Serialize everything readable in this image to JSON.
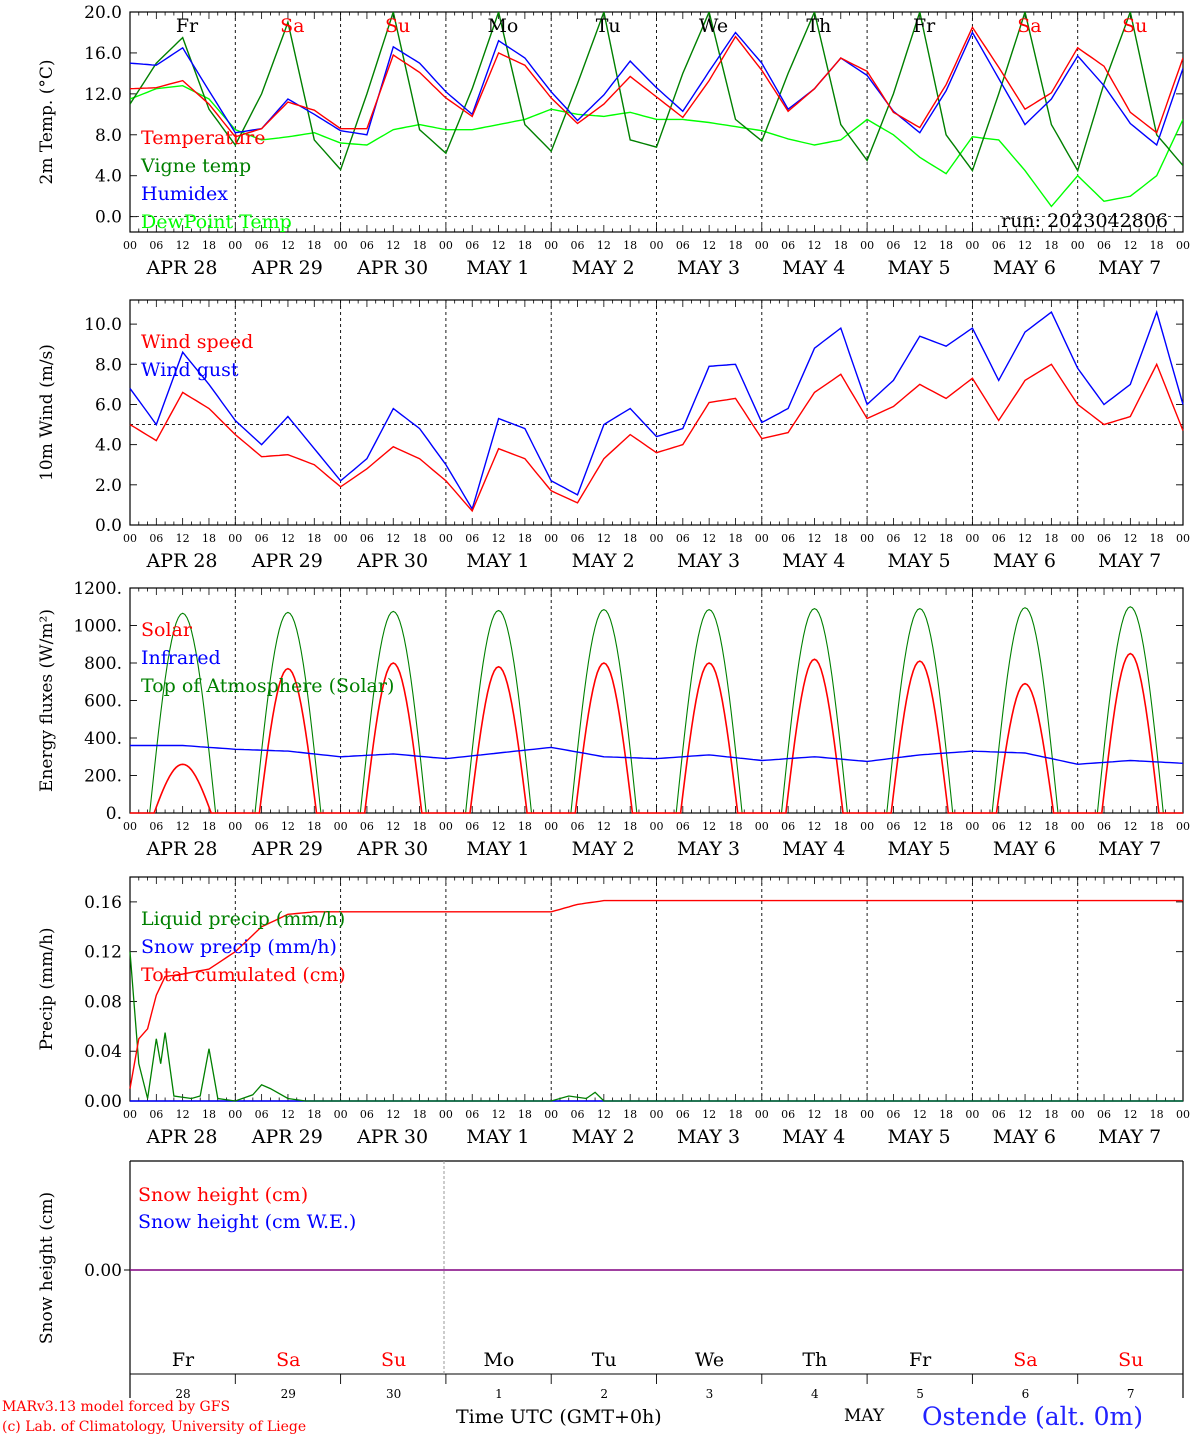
{
  "chart_data": [
    {
      "type": "line",
      "ylabel": "2m Temp. (°C)",
      "ylim": [
        -1.5,
        20
      ],
      "yticks": [
        "0.0",
        "4.0",
        "8.0",
        "12.0",
        "16.0",
        "20.0"
      ],
      "reference_line": 0,
      "run_label": "run: 2023042806",
      "weekday_labels": [
        "Fr",
        "Sa",
        "Su",
        "Mo",
        "Tu",
        "We",
        "Th",
        "Fr",
        "Sa",
        "Su"
      ],
      "legend": [
        "Temperature",
        "Vigne temp",
        "Humidex",
        "DewPoint Temp"
      ],
      "x_hours_from": "APR 28 00 UTC",
      "series": [
        {
          "name": "Temperature",
          "color": "#ff0000",
          "x": [
            0,
            6,
            12,
            18,
            24,
            30,
            36,
            42,
            48,
            54,
            60,
            66,
            72,
            78,
            84,
            90,
            96,
            102,
            108,
            114,
            120,
            126,
            132,
            138,
            144,
            150,
            156,
            162,
            168,
            174,
            180,
            186,
            192,
            198,
            204,
            210,
            216,
            222,
            228,
            234,
            240
          ],
          "values": [
            12.5,
            12.6,
            13.3,
            11.0,
            7.8,
            8.6,
            11.2,
            10.4,
            8.6,
            8.6,
            15.8,
            14.1,
            11.6,
            9.8,
            16.0,
            14.8,
            11.6,
            9.1,
            11.0,
            13.7,
            11.7,
            9.7,
            13.3,
            17.6,
            14.3,
            10.3,
            12.5,
            15.5,
            14.2,
            10.2,
            8.7,
            12.9,
            18.5,
            14.6,
            10.5,
            12.1,
            16.5,
            14.7,
            10.2,
            8.2,
            15.5
          ]
        },
        {
          "name": "Vigne temp",
          "color": "#008000",
          "x": [
            0,
            6,
            12,
            18,
            24,
            30,
            36,
            42,
            48,
            54,
            60,
            66,
            72,
            78,
            84,
            90,
            96,
            102,
            108,
            114,
            120,
            126,
            132,
            138,
            144,
            150,
            156,
            162,
            168,
            174,
            180,
            186,
            192,
            198,
            204,
            210,
            216,
            222,
            228,
            234,
            240
          ],
          "values": [
            11.0,
            15.0,
            17.5,
            10.5,
            7.0,
            12.0,
            19.0,
            7.5,
            4.6,
            12.0,
            20.0,
            8.5,
            6.2,
            12.5,
            20.0,
            9.0,
            6.4,
            13.0,
            20.0,
            7.5,
            6.8,
            14.0,
            20.0,
            9.5,
            7.4,
            14.0,
            20.0,
            9.0,
            5.5,
            12.0,
            20.0,
            8.0,
            4.5,
            12.0,
            20.0,
            9.0,
            4.5,
            13.0,
            20.0,
            8.0,
            5.0
          ]
        },
        {
          "name": "Humidex",
          "color": "#0000ff",
          "x": [
            0,
            6,
            12,
            18,
            24,
            30,
            36,
            42,
            48,
            54,
            60,
            66,
            72,
            78,
            84,
            90,
            96,
            102,
            108,
            114,
            120,
            126,
            132,
            138,
            144,
            150,
            156,
            162,
            168,
            174,
            180,
            186,
            192,
            198,
            204,
            210,
            216,
            222,
            228,
            234,
            240
          ],
          "values": [
            15.0,
            14.8,
            16.5,
            12.3,
            8.2,
            8.6,
            11.5,
            10.0,
            8.4,
            8.0,
            16.6,
            15.0,
            12.2,
            10.0,
            17.2,
            15.5,
            12.2,
            9.4,
            11.9,
            15.2,
            12.6,
            10.3,
            14.2,
            18.0,
            15.0,
            10.5,
            12.5,
            15.5,
            13.8,
            10.3,
            8.2,
            12.3,
            18.0,
            13.5,
            9.0,
            11.5,
            15.7,
            12.8,
            9.1,
            7.0,
            14.5
          ]
        },
        {
          "name": "DewPoint Temp",
          "color": "#00ff00",
          "x": [
            0,
            6,
            12,
            18,
            24,
            30,
            36,
            42,
            48,
            54,
            60,
            66,
            72,
            78,
            84,
            90,
            96,
            102,
            108,
            114,
            120,
            126,
            132,
            138,
            144,
            150,
            156,
            162,
            168,
            174,
            180,
            186,
            192,
            198,
            204,
            210,
            216,
            222,
            228,
            234,
            240
          ],
          "values": [
            11.5,
            12.5,
            12.8,
            11.5,
            8.5,
            7.5,
            7.8,
            8.2,
            7.2,
            7.0,
            8.5,
            9.0,
            8.5,
            8.5,
            9.0,
            9.5,
            10.5,
            10.0,
            9.8,
            10.2,
            9.5,
            9.5,
            9.2,
            8.8,
            8.4,
            7.6,
            7.0,
            7.5,
            9.5,
            8.0,
            5.8,
            4.2,
            7.8,
            7.5,
            4.5,
            1.0,
            4.0,
            1.5,
            2.0,
            4.0,
            9.5
          ]
        }
      ]
    },
    {
      "type": "line",
      "ylabel": "10m Wind (m/s)",
      "ylim": [
        0,
        11.2
      ],
      "yticks": [
        "0.0",
        "2.0",
        "4.0",
        "6.0",
        "8.0",
        "10.0"
      ],
      "reference_line": 5,
      "legend": [
        "Wind speed",
        "Wind gust"
      ],
      "series": [
        {
          "name": "Wind speed",
          "color": "#ff0000",
          "x": [
            0,
            6,
            12,
            18,
            24,
            30,
            36,
            42,
            48,
            54,
            60,
            66,
            72,
            78,
            84,
            90,
            96,
            102,
            108,
            114,
            120,
            126,
            132,
            138,
            144,
            150,
            156,
            162,
            168,
            174,
            180,
            186,
            192,
            198,
            204,
            210,
            216,
            222,
            228,
            234,
            240
          ],
          "values": [
            5.0,
            4.2,
            6.6,
            5.8,
            4.5,
            3.4,
            3.5,
            3.0,
            1.9,
            2.8,
            3.9,
            3.3,
            2.2,
            0.7,
            3.8,
            3.3,
            1.7,
            1.1,
            3.3,
            4.5,
            3.6,
            4.0,
            6.1,
            6.3,
            4.3,
            4.6,
            6.6,
            7.5,
            5.3,
            5.9,
            7.0,
            6.3,
            7.3,
            5.2,
            7.2,
            8.0,
            6.0,
            5.0,
            5.4,
            8.0,
            4.7
          ]
        },
        {
          "name": "Wind gust",
          "color": "#0000ff",
          "x": [
            0,
            6,
            12,
            18,
            24,
            30,
            36,
            42,
            48,
            54,
            60,
            66,
            72,
            78,
            84,
            90,
            96,
            102,
            108,
            114,
            120,
            126,
            132,
            138,
            144,
            150,
            156,
            162,
            168,
            174,
            180,
            186,
            192,
            198,
            204,
            210,
            216,
            222,
            228,
            234,
            240
          ],
          "values": [
            6.8,
            5.0,
            8.6,
            7.0,
            5.2,
            4.0,
            5.4,
            3.8,
            2.2,
            3.3,
            5.8,
            4.8,
            3.0,
            0.8,
            5.3,
            4.8,
            2.2,
            1.5,
            5.0,
            5.8,
            4.4,
            4.8,
            7.9,
            8.0,
            5.1,
            5.8,
            8.8,
            9.8,
            6.0,
            7.2,
            9.4,
            8.9,
            9.8,
            7.2,
            9.6,
            10.6,
            7.8,
            6.0,
            7.0,
            10.6,
            6.0
          ]
        }
      ]
    },
    {
      "type": "line",
      "ylabel": "Energy fluxes (W/m²)",
      "ylim": [
        0,
        1200
      ],
      "yticks": [
        "0.",
        "200.",
        "400.",
        "600.",
        "800.",
        "1000.",
        "1200."
      ],
      "legend": [
        "Solar",
        "Infrared",
        "Top of Atmosphere (Solar)"
      ],
      "series": [
        {
          "name": "Solar",
          "color": "#ff0000",
          "daily_peak": [
            260,
            770,
            800,
            780,
            800,
            800,
            820,
            810,
            690,
            850
          ]
        },
        {
          "name": "Infrared",
          "color": "#0000ff",
          "x": [
            0,
            12,
            24,
            36,
            48,
            60,
            72,
            84,
            96,
            108,
            120,
            132,
            144,
            156,
            168,
            180,
            192,
            204,
            216,
            228,
            240
          ],
          "values": [
            360,
            360,
            340,
            330,
            300,
            315,
            290,
            320,
            350,
            300,
            290,
            310,
            280,
            300,
            275,
            310,
            330,
            320,
            260,
            280,
            265
          ]
        },
        {
          "name": "Top of Atmosphere (Solar)",
          "color": "#008000",
          "daily_peak": [
            1065,
            1070,
            1075,
            1080,
            1085,
            1085,
            1090,
            1090,
            1095,
            1100
          ]
        }
      ]
    },
    {
      "type": "line",
      "ylabel": "Precip (mm/h)",
      "ylim": [
        0,
        0.18
      ],
      "yticks": [
        "0.00",
        "0.04",
        "0.08",
        "0.12",
        "0.16"
      ],
      "legend": [
        "Liquid precip (mm/h)",
        "Snow precip (mm/h)",
        "Total cumulated (cm)"
      ],
      "series": [
        {
          "name": "Liquid precip (mm/h)",
          "color": "#008000",
          "x": [
            0,
            2,
            4,
            6,
            7,
            8,
            10,
            14,
            16,
            18,
            20,
            24,
            28,
            30,
            32,
            36,
            40,
            96,
            100,
            104,
            106,
            108,
            240
          ],
          "values": [
            0.12,
            0.03,
            0.002,
            0.05,
            0.03,
            0.055,
            0.004,
            0.002,
            0.004,
            0.042,
            0.002,
            0.0,
            0.005,
            0.013,
            0.01,
            0.002,
            0.0,
            0.0,
            0.004,
            0.002,
            0.007,
            0.0,
            0.0
          ]
        },
        {
          "name": "Snow precip (mm/h)",
          "color": "#0000ff",
          "x": [
            0,
            240
          ],
          "values": [
            0,
            0
          ]
        },
        {
          "name": "Total cumulated (cm)",
          "color": "#ff0000",
          "x": [
            0,
            2,
            4,
            6,
            8,
            12,
            18,
            24,
            30,
            36,
            42,
            48,
            60,
            72,
            84,
            96,
            102,
            108,
            114,
            120,
            180,
            240
          ],
          "values": [
            0.01,
            0.05,
            0.058,
            0.085,
            0.1,
            0.102,
            0.106,
            0.12,
            0.14,
            0.15,
            0.152,
            0.152,
            0.152,
            0.152,
            0.152,
            0.152,
            0.158,
            0.161,
            0.161,
            0.161,
            0.161,
            0.161
          ]
        }
      ]
    },
    {
      "type": "line",
      "ylabel": "Snow height (cm)",
      "yticks": [
        "0.00"
      ],
      "legend": [
        "Snow height (cm)",
        "Snow height (cm W.E.)"
      ],
      "series": [
        {
          "name": "Snow height (cm)",
          "color": "#ff0000",
          "values": [
            0,
            0
          ]
        },
        {
          "name": "Snow height (cm W.E.)",
          "color": "#0000ff",
          "values": [
            0,
            0
          ]
        }
      ],
      "weekday_labels": [
        "Fr",
        "Sa",
        "Su",
        "Mo",
        "Tu",
        "We",
        "Th",
        "Fr",
        "Sa",
        "Su"
      ],
      "day_numbers": [
        "28",
        "29",
        "30",
        "1",
        "2",
        "3",
        "4",
        "5",
        "6",
        "7"
      ]
    }
  ],
  "date_labels": [
    "APR 28",
    "APR 29",
    "APR 30",
    "MAY  1",
    "MAY  2",
    "MAY  3",
    "MAY  4",
    "MAY  5",
    "MAY  6",
    "MAY  7"
  ],
  "hour_labels": [
    "00",
    "06",
    "12",
    "18"
  ],
  "weekend_color": "#ff0000",
  "footer": {
    "credit_line1": "MARv3.13 model forced by GFS",
    "credit_line2": "(c) Lab. of Climatology, University of Liege",
    "xlabel": "Time UTC (GMT+0h)",
    "month": "MAY",
    "station": "Ostende (alt. 0m)"
  }
}
